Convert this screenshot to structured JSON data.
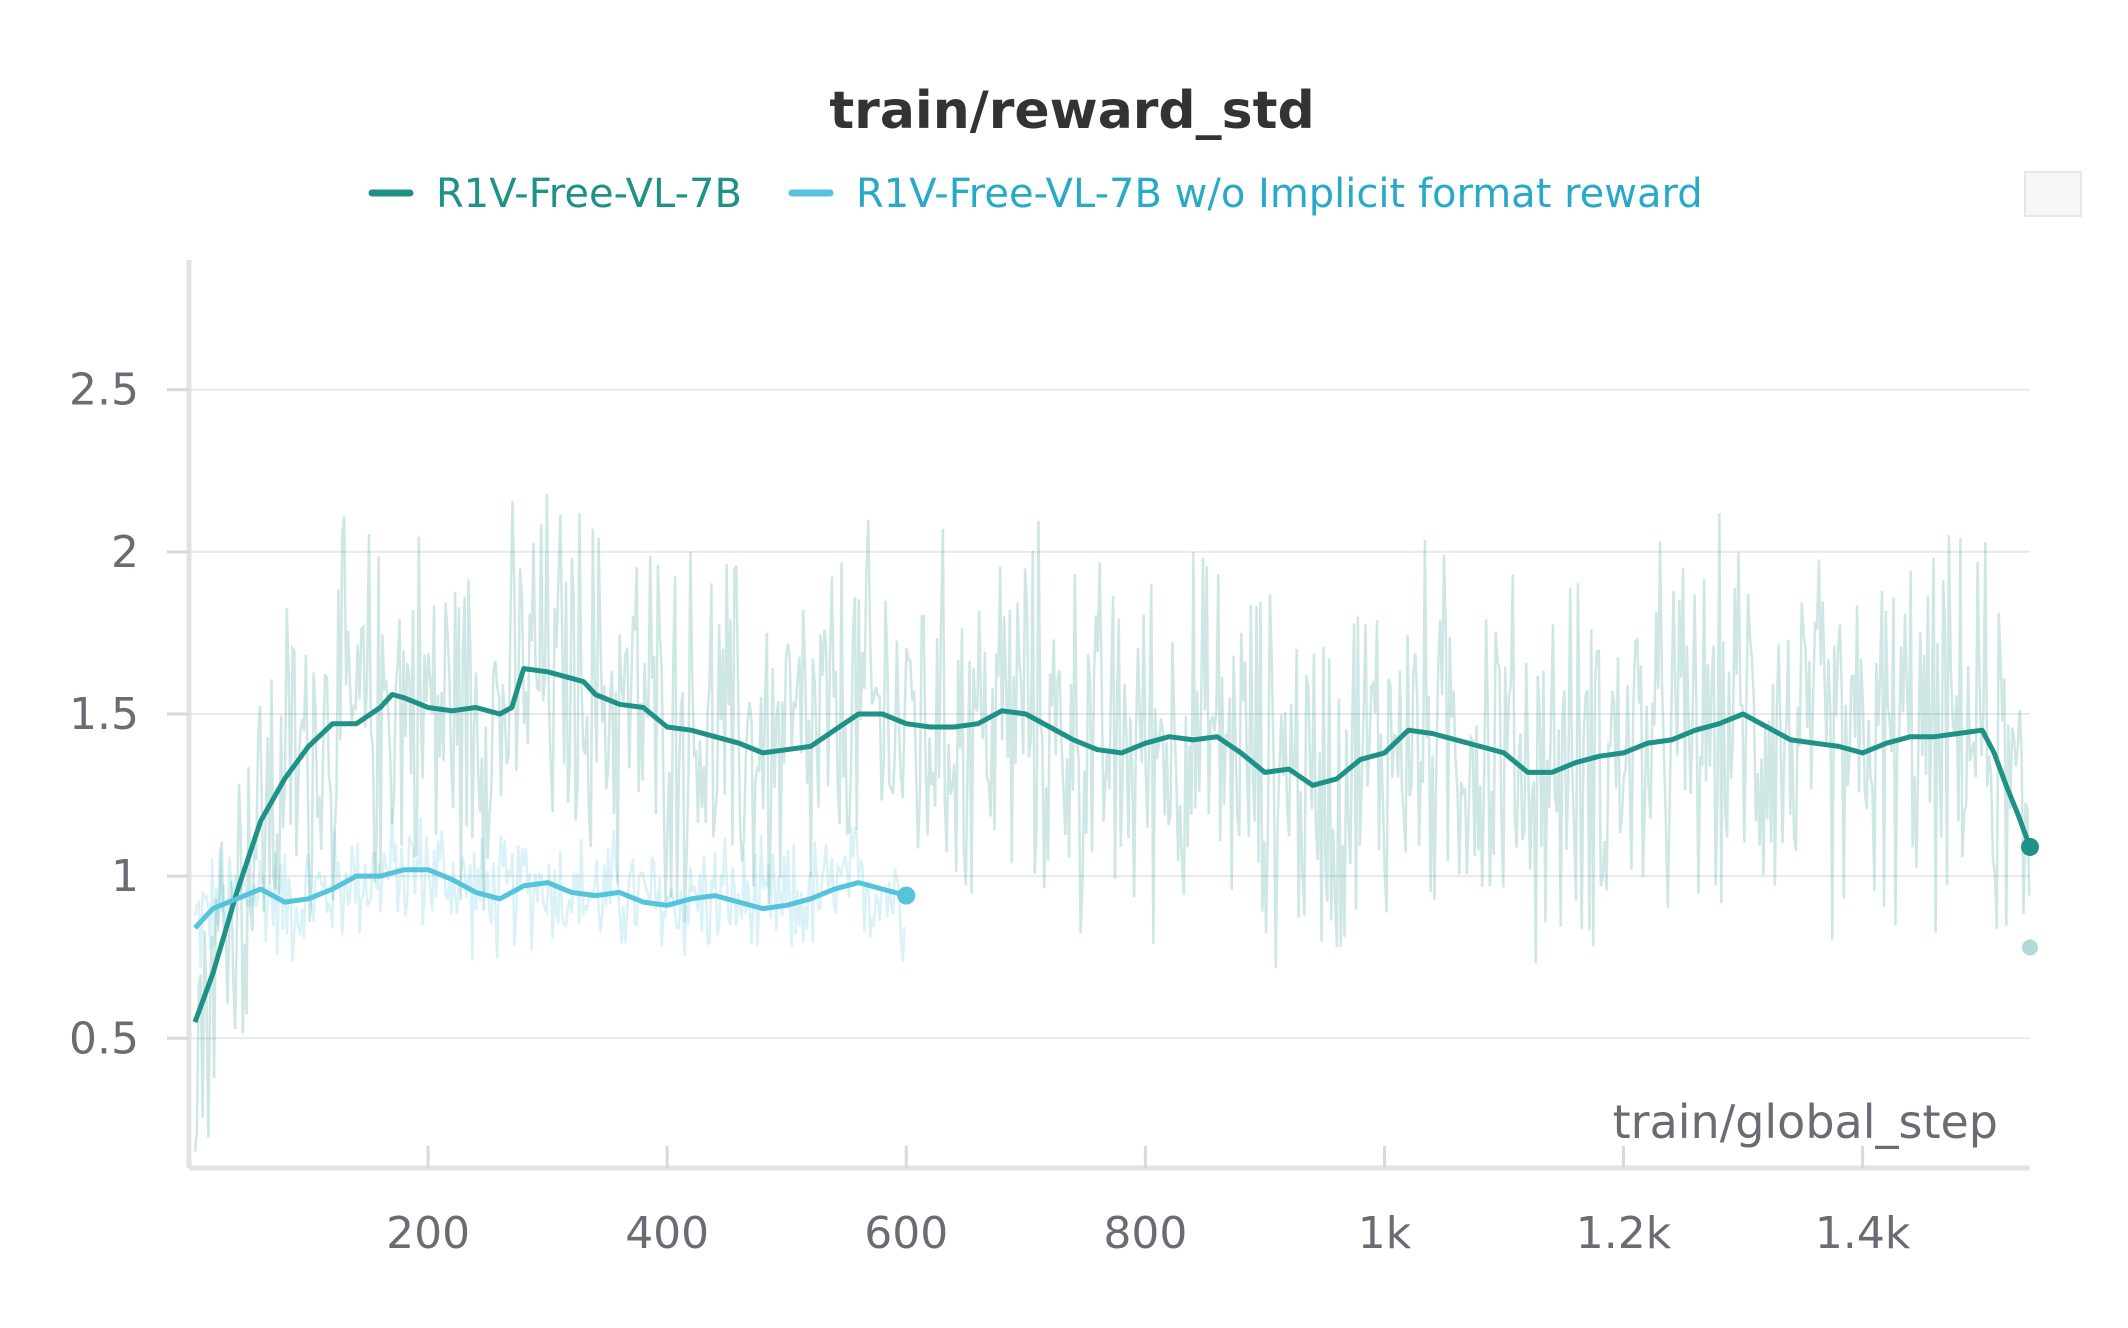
{
  "chart_data": {
    "type": "line",
    "title": "train/reward_std",
    "xlabel": "train/global_step",
    "ylabel": "",
    "xlim": [
      0,
      1540
    ],
    "ylim": [
      0.1,
      2.9
    ],
    "x_ticks": [
      200,
      400,
      600,
      800,
      1000,
      1200,
      1400
    ],
    "x_tick_labels": [
      "200",
      "400",
      "600",
      "800",
      "1k",
      "1.2k",
      "1.4k"
    ],
    "y_ticks": [
      0.5,
      1,
      1.5,
      2,
      2.5
    ],
    "y_tick_labels": [
      "0.5",
      "1",
      "1.5",
      "2",
      "2.5"
    ],
    "grid": true,
    "legend_position": "top-center",
    "series": [
      {
        "name": "R1V-Free-VL-7B",
        "color": "#1f9186",
        "x": [
          5,
          20,
          40,
          60,
          80,
          100,
          120,
          140,
          160,
          170,
          180,
          200,
          220,
          240,
          260,
          270,
          280,
          300,
          320,
          330,
          340,
          360,
          380,
          400,
          420,
          440,
          460,
          480,
          500,
          520,
          540,
          560,
          580,
          600,
          620,
          640,
          660,
          680,
          700,
          720,
          740,
          760,
          780,
          800,
          820,
          840,
          860,
          880,
          900,
          920,
          940,
          960,
          980,
          1000,
          1020,
          1040,
          1060,
          1080,
          1100,
          1120,
          1140,
          1160,
          1180,
          1200,
          1220,
          1240,
          1260,
          1280,
          1300,
          1320,
          1340,
          1360,
          1380,
          1400,
          1420,
          1440,
          1460,
          1480,
          1500,
          1510,
          1520,
          1530,
          1540
        ],
        "y": [
          0.55,
          0.7,
          0.95,
          1.17,
          1.3,
          1.4,
          1.47,
          1.47,
          1.52,
          1.56,
          1.55,
          1.52,
          1.51,
          1.52,
          1.5,
          1.52,
          1.64,
          1.63,
          1.61,
          1.6,
          1.56,
          1.53,
          1.52,
          1.46,
          1.45,
          1.43,
          1.41,
          1.38,
          1.39,
          1.4,
          1.45,
          1.5,
          1.5,
          1.47,
          1.46,
          1.46,
          1.47,
          1.51,
          1.5,
          1.46,
          1.42,
          1.39,
          1.38,
          1.41,
          1.43,
          1.42,
          1.43,
          1.38,
          1.32,
          1.33,
          1.28,
          1.3,
          1.36,
          1.38,
          1.45,
          1.44,
          1.42,
          1.4,
          1.38,
          1.32,
          1.32,
          1.35,
          1.37,
          1.38,
          1.41,
          1.42,
          1.45,
          1.47,
          1.5,
          1.46,
          1.42,
          1.41,
          1.4,
          1.38,
          1.41,
          1.43,
          1.43,
          1.44,
          1.45,
          1.38,
          1.28,
          1.19,
          1.09
        ]
      },
      {
        "name": "R1V-Free-VL-7B w/o Implicit format reward",
        "color": "#55c3db",
        "x": [
          5,
          20,
          40,
          60,
          80,
          100,
          120,
          140,
          160,
          180,
          200,
          220,
          240,
          260,
          280,
          300,
          320,
          340,
          360,
          380,
          400,
          420,
          440,
          460,
          480,
          500,
          520,
          540,
          560,
          580,
          600
        ],
        "y": [
          0.84,
          0.9,
          0.93,
          0.96,
          0.92,
          0.93,
          0.96,
          1.0,
          1.0,
          1.02,
          1.02,
          0.99,
          0.95,
          0.93,
          0.97,
          0.98,
          0.95,
          0.94,
          0.95,
          0.92,
          0.91,
          0.93,
          0.94,
          0.92,
          0.9,
          0.91,
          0.93,
          0.96,
          0.98,
          0.96,
          0.94
        ]
      }
    ]
  }
}
